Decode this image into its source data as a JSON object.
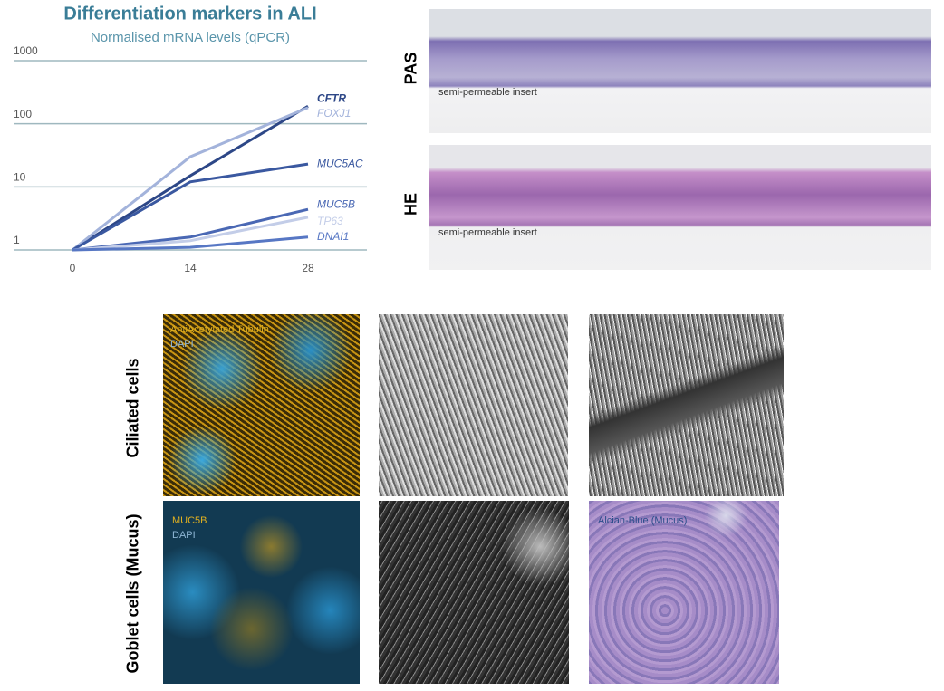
{
  "chart_data": {
    "type": "line",
    "title": "Differentiation markers in ALI",
    "subtitle": "Normalised mRNA levels (qPCR)",
    "x": [
      0,
      14,
      28
    ],
    "xlim": [
      -7,
      35
    ],
    "xticks": [
      0,
      14,
      28
    ],
    "ylim": [
      1,
      1000
    ],
    "yticks": [
      1,
      10,
      100,
      1000
    ],
    "log_y": true,
    "grid": true,
    "series": [
      {
        "name": "CFTR",
        "color": "#2d4787",
        "values": [
          1,
          15,
          190
        ]
      },
      {
        "name": "FOXJ1",
        "color": "#a3b3db",
        "values": [
          1,
          30,
          180
        ]
      },
      {
        "name": "MUC5AC",
        "color": "#3a58a0",
        "values": [
          1,
          12,
          23
        ]
      },
      {
        "name": "MUC5B",
        "color": "#4a68b4",
        "values": [
          1,
          1.6,
          4.4
        ]
      },
      {
        "name": "TP63",
        "color": "#c3cde8",
        "values": [
          1,
          1.4,
          3.3
        ]
      },
      {
        "name": "DNAI1",
        "color": "#5777c4",
        "values": [
          1,
          1.1,
          1.6
        ]
      }
    ]
  },
  "histology": {
    "pas_label": "PAS",
    "he_label": "HE",
    "pas_caption": "semi-permeable insert",
    "he_caption": "semi-permeable insert"
  },
  "panels": {
    "row_labels": [
      "Ciliated cells",
      "Goblet cells (Mucus)"
    ],
    "ciliated_stain": "AntiAcetylated Tubulin",
    "ciliated_dapi": "DAPI",
    "goblet_stain": "MUC5B",
    "goblet_dapi": "DAPI",
    "alcian": "Alcian-Blue (Mucus)"
  }
}
